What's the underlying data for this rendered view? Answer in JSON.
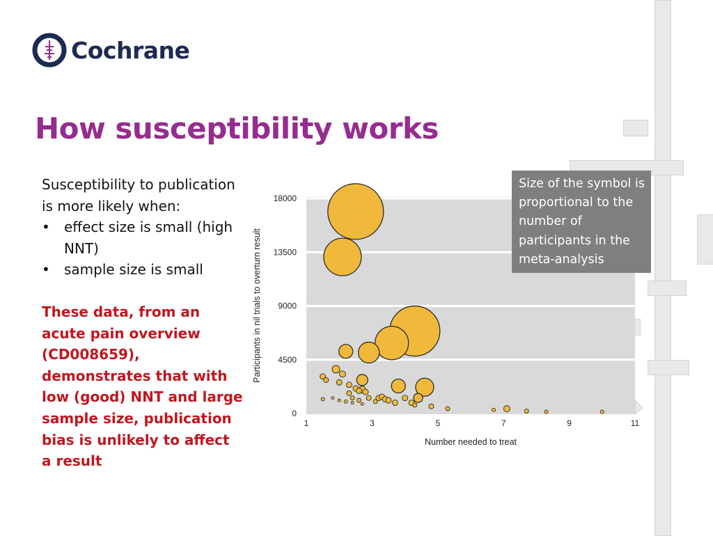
{
  "logo": {
    "text": "Cochrane",
    "mark_color": "#1d2a52",
    "accent_color": "#962c8f"
  },
  "slide": {
    "title": "How susceptibility works",
    "title_color": "#962c8f",
    "intro": "Susceptibility to publication is more likely when:",
    "bullets": [
      "effect size is small (high NNT)",
      "sample size is small"
    ],
    "bullet_glyph": "•",
    "conclusion": "These data, from an acute pain overview (CD008659), demonstrates that with low (good) NNT and large sample size, publication bias is unlikely to affect a result",
    "conclusion_color": "#c0171f"
  },
  "annotation": {
    "text": "Size of the symbol is proportional to the number of participants in the meta-analysis"
  },
  "chart_data": {
    "type": "scatter",
    "title": "",
    "xlabel": "Number needed to treat",
    "ylabel": "Participants in nil trials to overturn result",
    "xlim": [
      1,
      11
    ],
    "ylim": [
      0,
      18000
    ],
    "xticks": [
      "1",
      "3",
      "5",
      "7",
      "9",
      "11"
    ],
    "yticks": [
      "0",
      "4500",
      "9000",
      "13500",
      "18000"
    ],
    "grid": true,
    "marker_color": "#f0b93c",
    "marker_edge": "#2b2b2b",
    "plot_background": "#d9d9d9",
    "note": "Size of the symbol is proportional to the number of participants in the meta-analysis",
    "points": [
      {
        "x": 2.5,
        "y": 16900,
        "size": 40
      },
      {
        "x": 2.1,
        "y": 13100,
        "size": 27
      },
      {
        "x": 4.3,
        "y": 6900,
        "size": 36
      },
      {
        "x": 3.6,
        "y": 5900,
        "size": 24
      },
      {
        "x": 2.9,
        "y": 5100,
        "size": 15
      },
      {
        "x": 2.2,
        "y": 5200,
        "size": 10
      },
      {
        "x": 4.6,
        "y": 2200,
        "size": 13
      },
      {
        "x": 3.8,
        "y": 2300,
        "size": 10
      },
      {
        "x": 2.7,
        "y": 2800,
        "size": 8
      },
      {
        "x": 1.9,
        "y": 3700,
        "size": 5.5
      },
      {
        "x": 2.1,
        "y": 3300,
        "size": 4.5
      },
      {
        "x": 1.5,
        "y": 3100,
        "size": 4
      },
      {
        "x": 1.6,
        "y": 2800,
        "size": 3.5
      },
      {
        "x": 2.0,
        "y": 2600,
        "size": 4
      },
      {
        "x": 2.3,
        "y": 2400,
        "size": 4
      },
      {
        "x": 2.5,
        "y": 2100,
        "size": 4
      },
      {
        "x": 2.6,
        "y": 1900,
        "size": 4
      },
      {
        "x": 2.7,
        "y": 2000,
        "size": 5
      },
      {
        "x": 2.8,
        "y": 1800,
        "size": 4
      },
      {
        "x": 2.3,
        "y": 1700,
        "size": 3.5
      },
      {
        "x": 2.4,
        "y": 1300,
        "size": 3
      },
      {
        "x": 2.6,
        "y": 1100,
        "size": 3
      },
      {
        "x": 2.9,
        "y": 1300,
        "size": 3.5
      },
      {
        "x": 3.1,
        "y": 1000,
        "size": 3
      },
      {
        "x": 3.2,
        "y": 1300,
        "size": 4
      },
      {
        "x": 3.3,
        "y": 1400,
        "size": 4
      },
      {
        "x": 3.4,
        "y": 1200,
        "size": 4
      },
      {
        "x": 3.5,
        "y": 1100,
        "size": 4
      },
      {
        "x": 3.7,
        "y": 900,
        "size": 4
      },
      {
        "x": 4.0,
        "y": 1300,
        "size": 4
      },
      {
        "x": 4.4,
        "y": 1300,
        "size": 6.5
      },
      {
        "x": 4.2,
        "y": 900,
        "size": 4
      },
      {
        "x": 4.3,
        "y": 700,
        "size": 3
      },
      {
        "x": 4.8,
        "y": 600,
        "size": 3.5
      },
      {
        "x": 5.3,
        "y": 400,
        "size": 3
      },
      {
        "x": 6.7,
        "y": 300,
        "size": 2.5
      },
      {
        "x": 7.1,
        "y": 400,
        "size": 4.5
      },
      {
        "x": 7.7,
        "y": 200,
        "size": 3
      },
      {
        "x": 8.3,
        "y": 150,
        "size": 2.5
      },
      {
        "x": 10.0,
        "y": 150,
        "size": 2.5
      },
      {
        "x": 1.5,
        "y": 1200,
        "size": 2.5
      },
      {
        "x": 1.8,
        "y": 1300,
        "size": 2
      },
      {
        "x": 2.0,
        "y": 1100,
        "size": 2
      },
      {
        "x": 2.2,
        "y": 1000,
        "size": 2.5
      },
      {
        "x": 2.4,
        "y": 900,
        "size": 2
      },
      {
        "x": 2.7,
        "y": 800,
        "size": 2
      }
    ]
  }
}
